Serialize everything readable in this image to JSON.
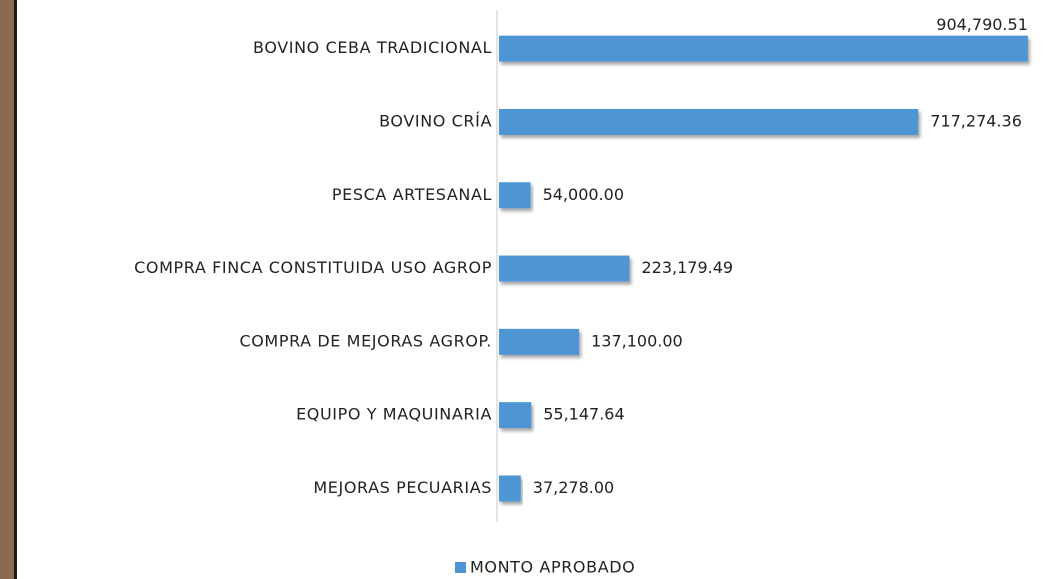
{
  "chart_data": {
    "type": "bar",
    "orientation": "horizontal",
    "categories": [
      "BOVINO CEBA TRADICIONAL",
      "BOVINO CRÍA",
      "PESCA ARTESANAL",
      "COMPRA FINCA CONSTITUIDA USO AGROP",
      "COMPRA DE MEJORAS AGROP.",
      "EQUIPO Y MAQUINARIA",
      "MEJORAS PECUARIAS"
    ],
    "series": [
      {
        "name": "MONTO APROBADO",
        "color": "#4e95d3",
        "values": [
          904790.51,
          717274.36,
          54000.0,
          223179.49,
          137100.0,
          55147.64,
          37278.0
        ],
        "value_labels": [
          "904,790.51",
          "717,274.36",
          "54,000.00",
          "223,179.49",
          "137,100.00",
          "55,147.64",
          "37,278.00"
        ]
      }
    ],
    "xlim": [
      0,
      905000
    ],
    "legend": "bottom"
  }
}
